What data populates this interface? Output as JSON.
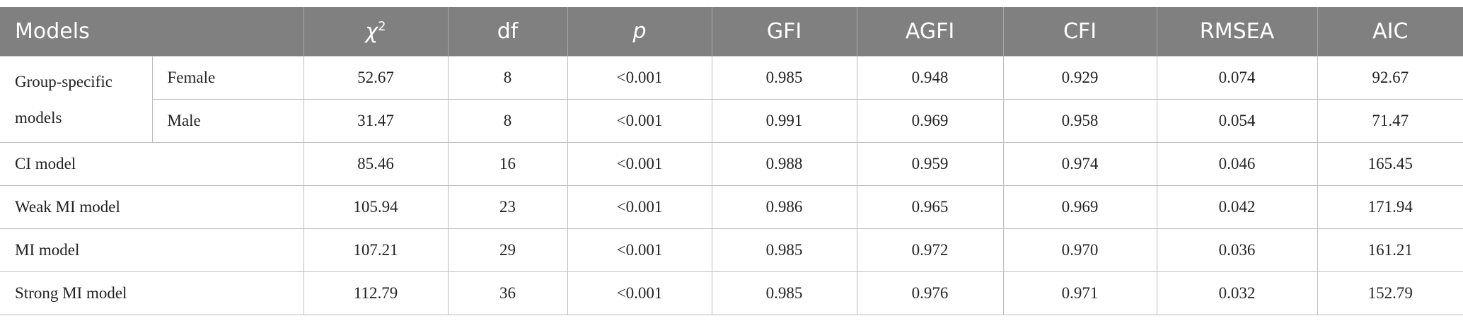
{
  "table": {
    "columns": [
      "Models",
      {
        "text": "χ",
        "sup": "2"
      },
      "df",
      "p",
      "GFI",
      "AGFI",
      "CFI",
      "RMSEA",
      "AIC"
    ],
    "group": {
      "label": "Group-specific models",
      "rows": [
        {
          "label": "Female",
          "cells": [
            "52.67",
            "8",
            "<0.001",
            "0.985",
            "0.948",
            "0.929",
            "0.074",
            "92.67"
          ]
        },
        {
          "label": "Male",
          "cells": [
            "31.47",
            "8",
            "<0.001",
            "0.991",
            "0.969",
            "0.958",
            "0.054",
            "71.47"
          ]
        }
      ]
    },
    "rows": [
      {
        "label": "CI model",
        "cells": [
          "85.46",
          "16",
          "<0.001",
          "0.988",
          "0.959",
          "0.974",
          "0.046",
          "165.45"
        ]
      },
      {
        "label": "Weak MI model",
        "cells": [
          "105.94",
          "23",
          "<0.001",
          "0.986",
          "0.965",
          "0.969",
          "0.042",
          "171.94"
        ]
      },
      {
        "label": "MI model",
        "cells": [
          "107.21",
          "29",
          "<0.001",
          "0.985",
          "0.972",
          "0.970",
          "0.036",
          "161.21"
        ]
      },
      {
        "label": "Strong MI model",
        "cells": [
          "112.79",
          "36",
          "<0.001",
          "0.985",
          "0.976",
          "0.971",
          "0.032",
          "152.79"
        ]
      }
    ]
  }
}
